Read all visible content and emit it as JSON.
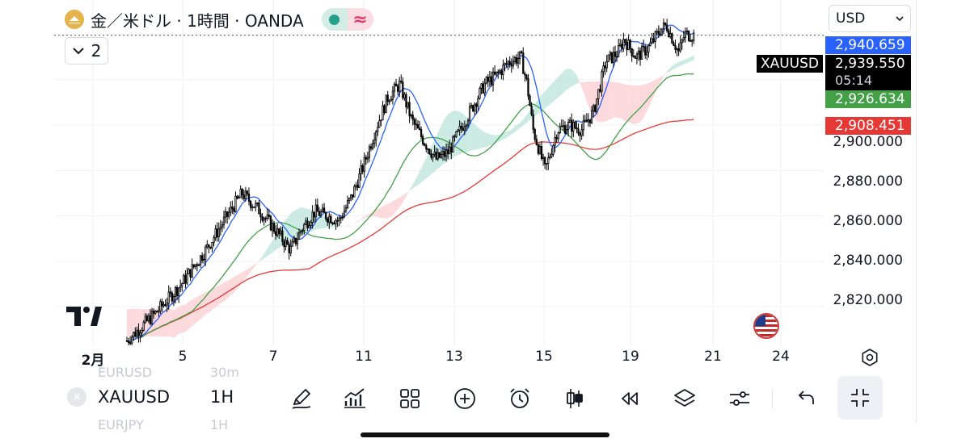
{
  "header": {
    "title": "金／米ドル · 1時間 · OANDA",
    "indicator_toggle_label": "≈",
    "collapse_count": "2",
    "currency": "USD"
  },
  "price_scale": {
    "labels": [
      "2,900.000",
      "2,880.000",
      "2,860.000",
      "2,840.000",
      "2,820.000"
    ],
    "tags": {
      "blue": "2,940.659",
      "current": "2,939.550",
      "countdown": "05:14",
      "green": "2,926.634",
      "red": "2,908.451"
    },
    "symbol_tag": "XAUUSD"
  },
  "time_scale": {
    "labels": [
      "2月",
      "5",
      "7",
      "11",
      "13",
      "15",
      "19",
      "21",
      "24"
    ]
  },
  "toolbar": {
    "ghost_top": [
      "EURUSD",
      "30m"
    ],
    "ghost_bottom": [
      "EURJPY",
      "1H"
    ],
    "symbol": "XAUUSD",
    "timeframe": "1H",
    "close_glyph": "×",
    "tools": [
      "pen-icon",
      "chart-bars-icon",
      "grid-icon",
      "add-icon",
      "alarm-icon",
      "candles-icon",
      "replay-icon",
      "layers-icon",
      "sliders-icon",
      "undo-icon",
      "fullscreen-exit-icon"
    ]
  },
  "colors": {
    "up_cloud": "#c5e8e0",
    "down_cloud": "#fbd5d8",
    "ma_blue": "#2962ff",
    "ma_green": "#43a047",
    "ma_red": "#e53935",
    "tag_blue": "#2962ff",
    "tag_green": "#43a047",
    "tag_red": "#e53935"
  },
  "chart_data": {
    "type": "candlestick",
    "symbol": "XAUUSD",
    "interval": "1H",
    "ylim": [
      2803,
      2948
    ],
    "x_ticks": [
      "2月",
      "5",
      "7",
      "11",
      "13",
      "15",
      "19",
      "21",
      "24"
    ],
    "close_path": [
      [
        0,
        2805
      ],
      [
        0.05,
        2818
      ],
      [
        0.09,
        2830
      ],
      [
        0.13,
        2845
      ],
      [
        0.17,
        2862
      ],
      [
        0.19,
        2870
      ],
      [
        0.22,
        2862
      ],
      [
        0.25,
        2852
      ],
      [
        0.27,
        2845
      ],
      [
        0.29,
        2855
      ],
      [
        0.31,
        2862
      ],
      [
        0.33,
        2860
      ],
      [
        0.35,
        2858
      ],
      [
        0.37,
        2868
      ],
      [
        0.39,
        2882
      ],
      [
        0.41,
        2898
      ],
      [
        0.43,
        2912
      ],
      [
        0.45,
        2918
      ],
      [
        0.47,
        2902
      ],
      [
        0.49,
        2893
      ],
      [
        0.51,
        2885
      ],
      [
        0.53,
        2888
      ],
      [
        0.55,
        2898
      ],
      [
        0.57,
        2908
      ],
      [
        0.59,
        2918
      ],
      [
        0.61,
        2922
      ],
      [
        0.63,
        2928
      ],
      [
        0.65,
        2930
      ],
      [
        0.66,
        2918
      ],
      [
        0.67,
        2898
      ],
      [
        0.69,
        2880
      ],
      [
        0.71,
        2898
      ],
      [
        0.73,
        2900
      ],
      [
        0.75,
        2898
      ],
      [
        0.77,
        2906
      ],
      [
        0.79,
        2928
      ],
      [
        0.81,
        2932
      ],
      [
        0.82,
        2938
      ],
      [
        0.84,
        2930
      ],
      [
        0.86,
        2934
      ],
      [
        0.88,
        2942
      ],
      [
        0.89,
        2944
      ],
      [
        0.91,
        2932
      ],
      [
        0.92,
        2940
      ],
      [
        0.935,
        2939.55
      ]
    ],
    "ma_fast_end": 2940.659,
    "ma_mid_end": 2926.634,
    "ma_slow_end": 2908.451,
    "current_price": 2939.55
  }
}
